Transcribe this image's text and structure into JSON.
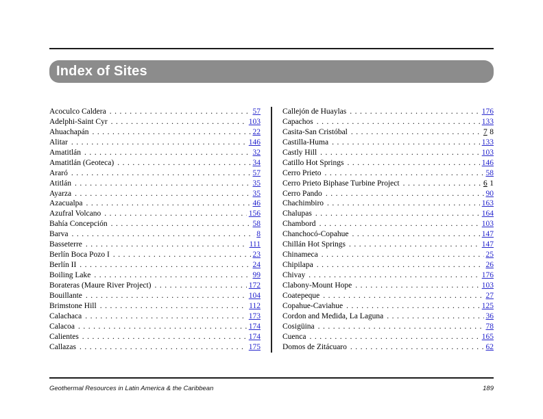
{
  "page": {
    "title": "Index of Sites",
    "footer": {
      "book_title": "Geothermal Resources in Latin America & the Caribbean",
      "page_number": "189"
    },
    "link_color": "#2222cc",
    "header_bar_color": "#8c8c8c"
  },
  "index": {
    "columns": [
      {
        "entries": [
          {
            "name": "Acoculco Caldera",
            "page": "57"
          },
          {
            "name": "Adelphi-Saint Cyr",
            "page": "103"
          },
          {
            "name": "Ahuachapán",
            "page": "22"
          },
          {
            "name": "Alitar",
            "page": "146"
          },
          {
            "name": "Amatitlán",
            "page": "32"
          },
          {
            "name": "Amatitlán (Geoteca)",
            "page": "34"
          },
          {
            "name": "Araró",
            "page": "57"
          },
          {
            "name": "Atitlán",
            "page": "35"
          },
          {
            "name": "Ayarza",
            "page": "35"
          },
          {
            "name": "Azacualpa",
            "page": "46"
          },
          {
            "name": "Azufral Volcano",
            "page": "156"
          },
          {
            "name": "Bahía Concepción",
            "page": "58"
          },
          {
            "name": "Barva",
            "page": "8"
          },
          {
            "name": "Basseterre",
            "page": "111"
          },
          {
            "name": "Berlín Boca Pozo I",
            "page": "23"
          },
          {
            "name": "Berlín II",
            "page": "24"
          },
          {
            "name": "Boiling Lake",
            "page": "99"
          },
          {
            "name": "Borateras (Maure River Project)",
            "page": "172"
          },
          {
            "name": "Bouillante",
            "page": "104"
          },
          {
            "name": "Brimstone Hill",
            "page": "112"
          },
          {
            "name": "Calachaca",
            "page": "173"
          },
          {
            "name": "Calacoa",
            "page": "174"
          },
          {
            "name": "Calientes",
            "page": "174"
          },
          {
            "name": "Callazas",
            "page": "175"
          }
        ]
      },
      {
        "entries": [
          {
            "name": "Callejón de Huaylas",
            "page": "176"
          },
          {
            "name": "Capachos",
            "page": "133"
          },
          {
            "name": "Casita-San Cristóbal",
            "page": "7 8",
            "parts": [
              {
                "text": "7",
                "underline": true
              },
              {
                "text": "8",
                "underline": false
              }
            ]
          },
          {
            "name": "Castilla-Huma",
            "page": "133"
          },
          {
            "name": "Castly Hill",
            "page": "103"
          },
          {
            "name": "Catillo Hot Springs",
            "page": "146"
          },
          {
            "name": "Cerro Prieto",
            "page": "58"
          },
          {
            "name": "Cerro Prieto Biphase Turbine Project",
            "page": "6 1",
            "parts": [
              {
                "text": "6",
                "underline": true
              },
              {
                "text": "1",
                "underline": false
              }
            ]
          },
          {
            "name": "Cerro Pando",
            "page": "90"
          },
          {
            "name": "Chachimbiro",
            "page": "163"
          },
          {
            "name": "Chalupas",
            "page": "164"
          },
          {
            "name": "Chambord",
            "page": "103"
          },
          {
            "name": "Chanchocó-Copahue",
            "page": "147"
          },
          {
            "name": "Chillán Hot Springs",
            "page": "147"
          },
          {
            "name": "Chinameca",
            "page": "25"
          },
          {
            "name": "Chipilapa",
            "page": "26"
          },
          {
            "name": "Chivay",
            "page": "176"
          },
          {
            "name": "Clabony-Mount Hope",
            "page": "103"
          },
          {
            "name": "Coatepeque",
            "page": "27"
          },
          {
            "name": "Copahue-Caviahue",
            "page": "125"
          },
          {
            "name": "Cordon and Medida, La Laguna",
            "page": "36"
          },
          {
            "name": "Cosigüina",
            "page": "78"
          },
          {
            "name": "Cuenca",
            "page": "165"
          },
          {
            "name": "Domos de Zitácuaro",
            "page": "62"
          }
        ]
      }
    ]
  }
}
